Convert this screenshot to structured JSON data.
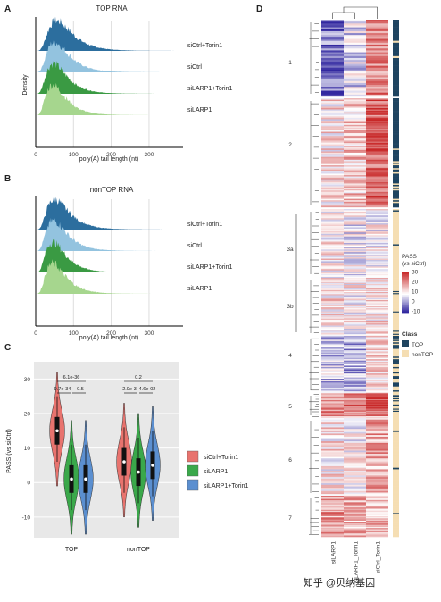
{
  "panels": {
    "A": "A",
    "B": "B",
    "C": "C",
    "D": "D"
  },
  "chart_data": [
    {
      "panel": "A",
      "type": "area",
      "title": "TOP RNA",
      "xlabel": "poly(A) tail length (nt)",
      "ylabel": "Density",
      "x_ticks": [
        0,
        100,
        200,
        300
      ],
      "xlim": [
        0,
        390
      ],
      "series": [
        {
          "name": "siCtrl+Torin1",
          "color": "#2c6e9e",
          "peak": 60
        },
        {
          "name": "siCtrl",
          "color": "#93c3df",
          "peak": 55
        },
        {
          "name": "siLARP1+Torin1",
          "color": "#3a9a43",
          "peak": 52
        },
        {
          "name": "siLARP1",
          "color": "#a6d68e",
          "peak": 50
        }
      ]
    },
    {
      "panel": "B",
      "type": "area",
      "title": "nonTOP RNA",
      "xlabel": "poly(A) tail length (nt)",
      "ylabel": "Density",
      "x_ticks": [
        0,
        100,
        200,
        300
      ],
      "xlim": [
        0,
        390
      ],
      "series": [
        {
          "name": "siCtrl+Torin1",
          "color": "#2c6e9e",
          "peak": 55
        },
        {
          "name": "siCtrl",
          "color": "#93c3df",
          "peak": 52
        },
        {
          "name": "siLARP1+Torin1",
          "color": "#3a9a43",
          "peak": 50
        },
        {
          "name": "siLARP1",
          "color": "#a6d68e",
          "peak": 50
        }
      ]
    },
    {
      "panel": "C",
      "type": "violin",
      "ylabel": "PASS (vs siCtrl)",
      "categories": [
        "TOP",
        "nonTOP"
      ],
      "y_ticks": [
        -10,
        0,
        10,
        20,
        30
      ],
      "ylim": [
        -16,
        35
      ],
      "series": [
        {
          "name": "siCtrl+Torin1",
          "color": "#e8736e",
          "median": [
            15,
            6
          ]
        },
        {
          "name": "siLARP1",
          "color": "#3aa84a",
          "median": [
            1,
            3
          ]
        },
        {
          "name": "siLARP1+Torin1",
          "color": "#5b8fd0",
          "median": [
            1,
            5
          ]
        }
      ],
      "significance": [
        {
          "group": "TOP",
          "top": "6.1e-36",
          "left": "9.7e-34",
          "right": "0.5"
        },
        {
          "group": "nonTOP",
          "top": "0.2",
          "left": "2.0e-3",
          "right": "4.6e-02"
        }
      ]
    },
    {
      "panel": "D",
      "type": "heatmap",
      "columns": [
        "siLARP1",
        "siLARP1_Torin1",
        "siCtrl_Torin1"
      ],
      "clusters": [
        "1",
        "2",
        "3a",
        "3b",
        "4",
        "5",
        "6",
        "7"
      ],
      "legend_title": "PASS\n(vs siCtrl)",
      "legend_ticks": [
        30,
        20,
        10,
        0,
        -10
      ],
      "class_title": "Class",
      "classes": [
        {
          "name": "TOP",
          "color": "#1f4460"
        },
        {
          "name": "nonTOP",
          "color": "#f5deb3"
        }
      ]
    }
  ],
  "watermark": "知乎 @贝纳基因"
}
